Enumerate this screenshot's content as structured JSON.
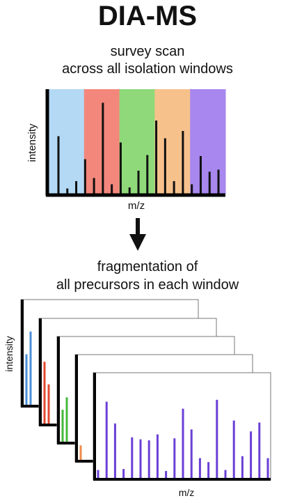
{
  "title": "DIA-MS",
  "survey": {
    "caption_line1": "survey scan",
    "caption_line2": "across all isolation windows",
    "xlabel": "m/z",
    "ylabel": "intensity",
    "windows": [
      {
        "name": "window-1",
        "color": "#b3d9f5"
      },
      {
        "name": "window-2",
        "color": "#f4877c"
      },
      {
        "name": "window-3",
        "color": "#8fd97a"
      },
      {
        "name": "window-4",
        "color": "#f7c18c"
      },
      {
        "name": "window-5",
        "color": "#a887ee"
      }
    ],
    "peaks": [
      0.55,
      0.05,
      0.12,
      0.33,
      0.15,
      0.87,
      0.09,
      0.49,
      0.06,
      0.22,
      0.37,
      0.7,
      0.53,
      0.12,
      0.6,
      0.09,
      0.36,
      0.21,
      0.23
    ]
  },
  "arrow": "down-arrow",
  "fragmentation": {
    "caption_line1": "fragmentation of",
    "caption_line2": "all precursors in each window",
    "xlabel": "m/z",
    "ylabel": "intensity",
    "stack_colors": [
      "#4a90d9",
      "#e2482f",
      "#45b83c",
      "#f08a4b",
      "#6a3fd6"
    ],
    "front_peaks": [
      0.08,
      0.77,
      0.55,
      0.09,
      0.41,
      0.39,
      0.38,
      0.44,
      0.07,
      0.4,
      0.7,
      0.49,
      0.2,
      0.16,
      0.79,
      0.08,
      0.58,
      0.22,
      0.47,
      0.56,
      0.2
    ]
  }
}
